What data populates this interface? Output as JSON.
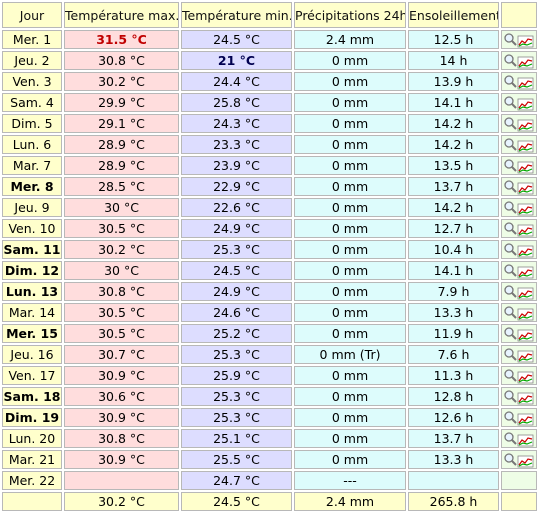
{
  "table": {
    "header": [
      "Jour",
      "Température max.",
      "Température min.",
      "Précipitations 24h",
      "Ensoleillement"
    ],
    "rows": [
      [
        "Mer. 1",
        "31.5 °C",
        "24.5 °C",
        "2.4 mm",
        "12.5 h"
      ],
      [
        "Jeu. 2",
        "30.8 °C",
        "21 °C",
        "0 mm",
        "14 h"
      ],
      [
        "Ven. 3",
        "30.2 °C",
        "24.4 °C",
        "0 mm",
        "13.9 h"
      ],
      [
        "Sam. 4",
        "29.9 °C",
        "25.8 °C",
        "0 mm",
        "14.1 h"
      ],
      [
        "Dim. 5",
        "29.1 °C",
        "24.3 °C",
        "0 mm",
        "14.2 h"
      ],
      [
        "Lun. 6",
        "28.9 °C",
        "23.3 °C",
        "0 mm",
        "14.2 h"
      ],
      [
        "Mar. 7",
        "28.9 °C",
        "23.9 °C",
        "0 mm",
        "13.5 h"
      ],
      [
        "Mer. 8",
        "28.5 °C",
        "22.9 °C",
        "0 mm",
        "13.7 h"
      ],
      [
        "Jeu. 9",
        "30 °C",
        "22.6 °C",
        "0 mm",
        "14.2 h"
      ],
      [
        "Ven. 10",
        "30.5 °C",
        "24.9 °C",
        "0 mm",
        "12.7 h"
      ],
      [
        "Sam. 11",
        "30.2 °C",
        "25.3 °C",
        "0 mm",
        "10.4 h"
      ],
      [
        "Dim. 12",
        "30 °C",
        "24.5 °C",
        "0 mm",
        "14.1 h"
      ],
      [
        "Lun. 13",
        "30.8 °C",
        "24.9 °C",
        "0 mm",
        "7.9 h"
      ],
      [
        "Mar. 14",
        "30.5 °C",
        "24.6 °C",
        "0 mm",
        "13.3 h"
      ],
      [
        "Mer. 15",
        "30.5 °C",
        "25.2 °C",
        "0 mm",
        "11.9 h"
      ],
      [
        "Jeu. 16",
        "30.7 °C",
        "25.3 °C",
        "0 mm (Tr)",
        "7.6 h"
      ],
      [
        "Ven. 17",
        "30.9 °C",
        "25.9 °C",
        "0 mm",
        "11.3 h"
      ],
      [
        "Sam. 18",
        "30.6 °C",
        "25.3 °C",
        "0 mm",
        "12.8 h"
      ],
      [
        "Dim. 19",
        "30.9 °C",
        "25.3 °C",
        "0 mm",
        "12.6 h"
      ],
      [
        "Lun. 20",
        "30.8 °C",
        "25.1 °C",
        "0 mm",
        "13.7 h"
      ],
      [
        "Mar. 21",
        "30.9 °C",
        "25.5 °C",
        "0 mm",
        "13.3 h"
      ],
      [
        "Mer. 22",
        null,
        "24.7 °C",
        "---",
        null
      ]
    ],
    "footer": [
      "30.2 °C",
      "24.5 °C",
      "2.4 mm",
      "265.8 h"
    ]
  }
}
